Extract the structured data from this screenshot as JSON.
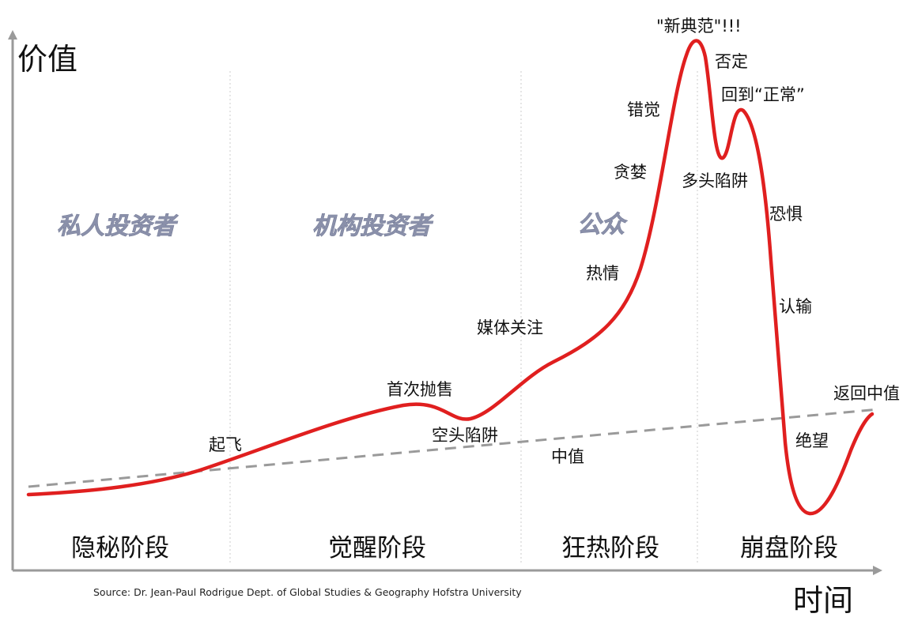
{
  "axes": {
    "y_title": "价值",
    "x_title": "时间"
  },
  "investors": [
    "私人投资者",
    "机构投资者",
    "公众"
  ],
  "phases": [
    "隐秘阶段",
    "觉醒阶段",
    "狂热阶段",
    "崩盘阶段"
  ],
  "curve_labels": {
    "takeoff": "起飞",
    "first_sell_off": "首次抛售",
    "bear_trap": "空头陷阱",
    "media_attention": "媒体关注",
    "enthusiasm": "热情",
    "greed": "贪婪",
    "delusion": "错觉",
    "new_paradigm": "\"新典范\"!!!",
    "denial": "否定",
    "return_to_normal": "回到“正常”",
    "bull_trap": "多头陷阱",
    "fear": "恐惧",
    "capitulation": "认输",
    "despair": "绝望",
    "return_to_mean": "返回中值",
    "mean": "中值"
  },
  "source": "Source: Dr. Jean-Paul Rodrigue Dept. of Global Studies & Geography Hofstra University",
  "colors": {
    "curve": "#e01f1f",
    "mean_line": "#9a9a9a",
    "axis": "#9a9a9a",
    "investor_text": "#8a90aa"
  }
}
